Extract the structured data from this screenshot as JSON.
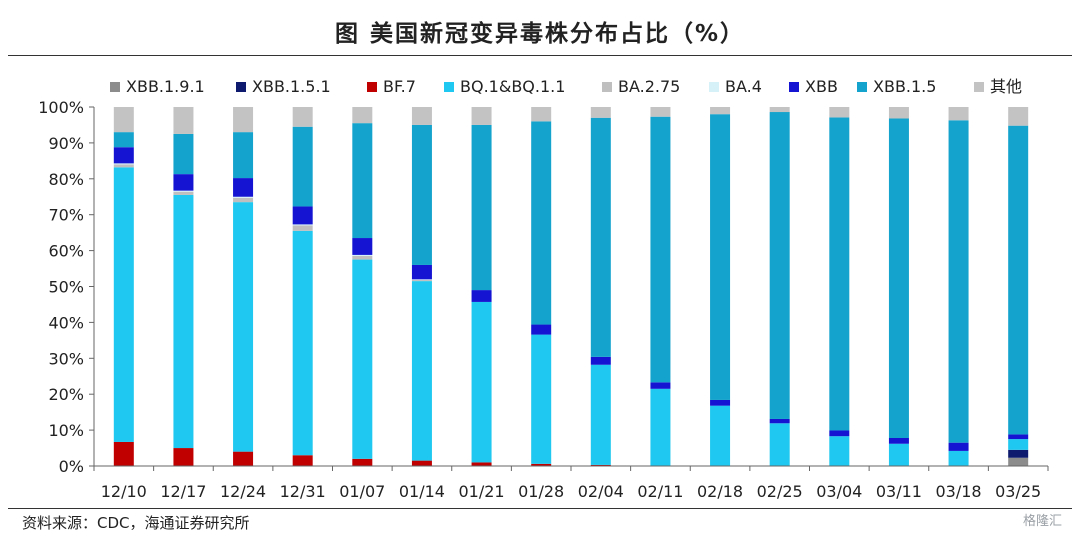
{
  "title": "图  美国新冠变异毒株分布占比（%）",
  "source": "资料来源：CDC，海通证券研究所",
  "watermark": "格隆汇",
  "chart_data": {
    "type": "bar",
    "stacked": true,
    "categories": [
      "12/10",
      "12/17",
      "12/24",
      "12/31",
      "01/07",
      "01/14",
      "01/21",
      "01/28",
      "02/04",
      "02/11",
      "02/18",
      "02/25",
      "03/04",
      "03/11",
      "03/18",
      "03/25"
    ],
    "ylim": [
      0,
      100
    ],
    "yticks": [
      "0%",
      "10%",
      "20%",
      "30%",
      "40%",
      "50%",
      "60%",
      "70%",
      "80%",
      "90%",
      "100%"
    ],
    "legend_position": "top",
    "legend_order": [
      "XBB.1.9.1",
      "XBB.1.5.1",
      "BF.7",
      "BQ.1&BQ.1.1",
      "BA.2.75",
      "BA.4",
      "XBB",
      "XBB.1.5",
      "其他"
    ],
    "series": [
      {
        "name": "XBB.1.9.1",
        "color": "#8c8c8c",
        "values": [
          0,
          0,
          0,
          0,
          0,
          0,
          0,
          0,
          0,
          0,
          0,
          0,
          0,
          0,
          0,
          2.3
        ]
      },
      {
        "name": "XBB.1.5.1",
        "color": "#0d1a6e",
        "values": [
          0,
          0,
          0,
          0,
          0,
          0,
          0,
          0,
          0,
          0,
          0,
          0,
          0,
          0,
          0,
          2.2
        ]
      },
      {
        "name": "BF.7",
        "color": "#c00000",
        "values": [
          6.7,
          5.0,
          4.0,
          3.0,
          2.0,
          1.5,
          1.0,
          0.6,
          0.3,
          0,
          0,
          0,
          0,
          0,
          0,
          0
        ]
      },
      {
        "name": "BQ.1&BQ.1.1",
        "color": "#1fc8f0",
        "values": [
          76.5,
          70.5,
          69.5,
          62.5,
          55.5,
          50,
          44.7,
          36,
          27.9,
          21.5,
          16.8,
          11.9,
          8.3,
          6.2,
          4.2,
          3.0
        ]
      },
      {
        "name": "BA.2.75",
        "color": "#bfbfbf",
        "values": [
          0.8,
          0.9,
          1.2,
          1.5,
          1.0,
          0.3,
          0,
          0,
          0,
          0,
          0,
          0,
          0,
          0,
          0,
          0
        ]
      },
      {
        "name": "BA.4",
        "color": "#d6f2f8",
        "values": [
          0.3,
          0.3,
          0.3,
          0.3,
          0.3,
          0.2,
          0,
          0,
          0,
          0,
          0,
          0,
          0,
          0,
          0,
          0
        ]
      },
      {
        "name": "XBB",
        "color": "#1414d2",
        "values": [
          4.5,
          4.6,
          5.2,
          5.0,
          4.7,
          4.0,
          3.3,
          2.8,
          2.2,
          1.8,
          1.6,
          1.2,
          1.6,
          1.6,
          2.3,
          1.3
        ]
      },
      {
        "name": "XBB.1.5",
        "color": "#14a3cc",
        "values": [
          4.2,
          11.2,
          12.8,
          22.2,
          32.0,
          39.0,
          46.0,
          56.6,
          66.6,
          74.0,
          79.6,
          85.5,
          87.2,
          89.0,
          89.8,
          86.0
        ]
      },
      {
        "name": "其他",
        "color": "#c3c3c3",
        "values": [
          7.0,
          7.5,
          7.0,
          5.5,
          4.5,
          5.0,
          5.0,
          4.0,
          3.0,
          2.7,
          2.0,
          1.4,
          2.9,
          3.2,
          3.7,
          5.2
        ]
      }
    ]
  }
}
